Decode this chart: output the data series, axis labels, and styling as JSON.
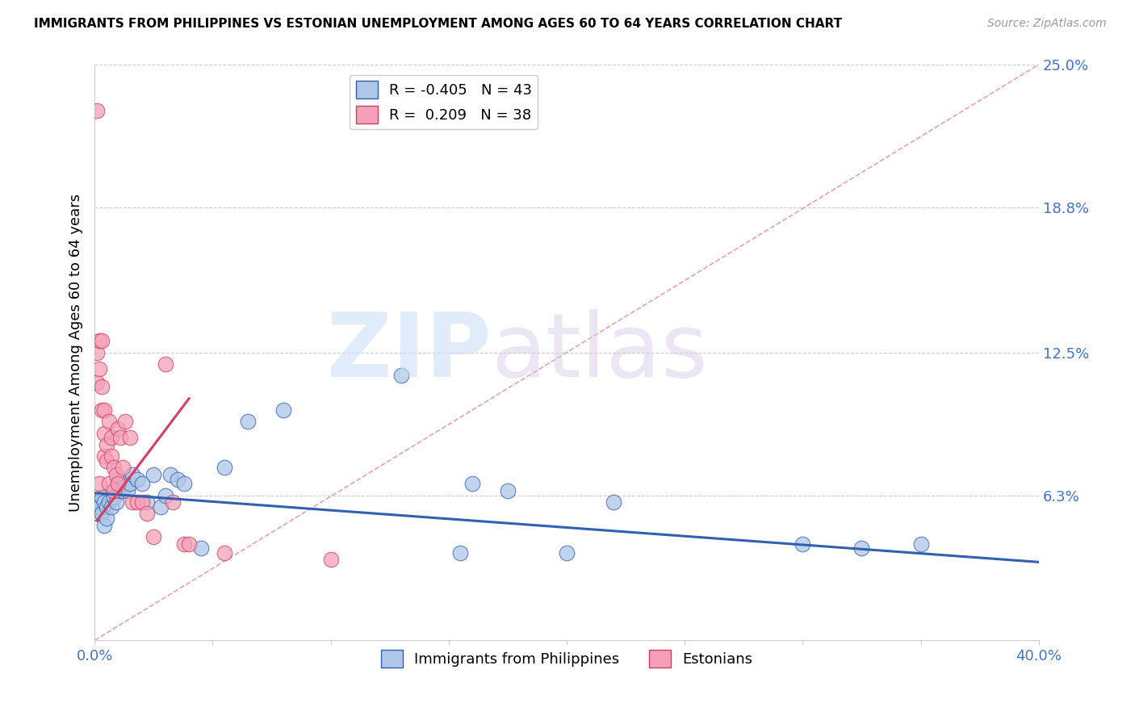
{
  "title": "IMMIGRANTS FROM PHILIPPINES VS ESTONIAN UNEMPLOYMENT AMONG AGES 60 TO 64 YEARS CORRELATION CHART",
  "source": "Source: ZipAtlas.com",
  "ylabel": "Unemployment Among Ages 60 to 64 years",
  "xlim": [
    0.0,
    0.4
  ],
  "ylim": [
    0.0,
    0.25
  ],
  "xticks": [
    0.0,
    0.05,
    0.1,
    0.15,
    0.2,
    0.25,
    0.3,
    0.35,
    0.4
  ],
  "xticklabels": [
    "0.0%",
    "",
    "",
    "",
    "",
    "",
    "",
    "",
    "40.0%"
  ],
  "ytick_right_values": [
    0.063,
    0.125,
    0.188,
    0.25
  ],
  "ytick_right_labels": [
    "6.3%",
    "12.5%",
    "18.8%",
    "25.0%"
  ],
  "blue_R": -0.405,
  "blue_N": 43,
  "pink_R": 0.209,
  "pink_N": 38,
  "blue_color": "#aec6e8",
  "blue_line_color": "#3060b0",
  "pink_color": "#f4a0b8",
  "pink_line_color": "#d04060",
  "diag_line_color": "#e8a0b0",
  "legend_label_blue": "Immigrants from Philippines",
  "legend_label_pink": "Estonians",
  "watermark_zip": "ZIP",
  "watermark_atlas": "atlas",
  "blue_line_x0": 0.0,
  "blue_line_y0": 0.064,
  "blue_line_x1": 0.4,
  "blue_line_y1": 0.034,
  "pink_line_x0": 0.001,
  "pink_line_y0": 0.052,
  "pink_line_x1": 0.04,
  "pink_line_y1": 0.105,
  "blue_scatter_x": [
    0.001,
    0.001,
    0.002,
    0.002,
    0.003,
    0.003,
    0.004,
    0.004,
    0.005,
    0.005,
    0.006,
    0.007,
    0.008,
    0.009,
    0.01,
    0.011,
    0.012,
    0.013,
    0.014,
    0.015,
    0.016,
    0.018,
    0.02,
    0.022,
    0.025,
    0.028,
    0.03,
    0.032,
    0.035,
    0.038,
    0.045,
    0.055,
    0.065,
    0.08,
    0.13,
    0.155,
    0.16,
    0.175,
    0.2,
    0.22,
    0.3,
    0.325,
    0.35
  ],
  "blue_scatter_y": [
    0.06,
    0.055,
    0.06,
    0.058,
    0.062,
    0.055,
    0.06,
    0.05,
    0.058,
    0.053,
    0.06,
    0.058,
    0.062,
    0.06,
    0.068,
    0.065,
    0.065,
    0.068,
    0.065,
    0.068,
    0.072,
    0.07,
    0.068,
    0.06,
    0.072,
    0.058,
    0.063,
    0.072,
    0.07,
    0.068,
    0.04,
    0.075,
    0.095,
    0.1,
    0.115,
    0.038,
    0.068,
    0.065,
    0.038,
    0.06,
    0.042,
    0.04,
    0.042
  ],
  "pink_scatter_x": [
    0.001,
    0.001,
    0.001,
    0.002,
    0.002,
    0.002,
    0.003,
    0.003,
    0.003,
    0.004,
    0.004,
    0.004,
    0.005,
    0.005,
    0.006,
    0.006,
    0.007,
    0.007,
    0.008,
    0.008,
    0.009,
    0.01,
    0.01,
    0.011,
    0.012,
    0.013,
    0.015,
    0.016,
    0.018,
    0.02,
    0.022,
    0.025,
    0.03,
    0.033,
    0.038,
    0.04,
    0.055,
    0.1
  ],
  "pink_scatter_y": [
    0.23,
    0.125,
    0.112,
    0.13,
    0.118,
    0.068,
    0.13,
    0.11,
    0.1,
    0.1,
    0.09,
    0.08,
    0.085,
    0.078,
    0.095,
    0.068,
    0.088,
    0.08,
    0.075,
    0.065,
    0.072,
    0.092,
    0.068,
    0.088,
    0.075,
    0.095,
    0.088,
    0.06,
    0.06,
    0.06,
    0.055,
    0.045,
    0.12,
    0.06,
    0.042,
    0.042,
    0.038,
    0.035
  ]
}
